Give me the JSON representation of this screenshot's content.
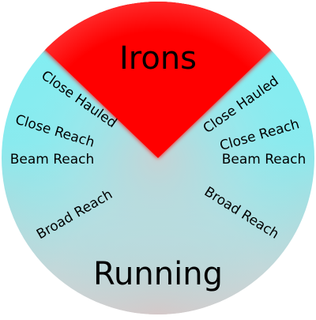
{
  "labels": {
    "top": "Irons",
    "bottom": "Running",
    "close_hauled_left": "Close Hauled",
    "close_reach_left": "Close Reach",
    "beam_reach_left": "Beam Reach",
    "broad_reach_left": "Broad Reach",
    "close_hauled_right": "Close Hauled",
    "close_reach_right": "Close Reach",
    "beam_reach_right": "Beam Reach",
    "broad_reach_right": "Broad Reach"
  },
  "colors": {
    "irons": "#ff0000",
    "outer_ring": "#7ef0f4",
    "running_zone": "#d8c8c8",
    "fade": "#b9dde0"
  }
}
